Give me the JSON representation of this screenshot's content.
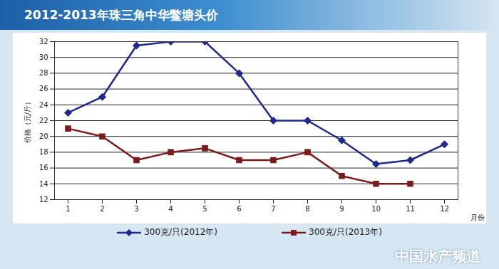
{
  "chart_data": {
    "type": "line",
    "title": "2012-2013年珠三角中华鳖塘头价",
    "x_label": "月份",
    "y_label": "价格（元/斤）",
    "watermark": "中国水产频道",
    "categories": [
      "1",
      "2",
      "3",
      "4",
      "5",
      "6",
      "7",
      "8",
      "9",
      "10",
      "11",
      "12"
    ],
    "series": [
      {
        "name": "300克/只(2012年)",
        "color": "#1f2a8c",
        "marker": "diamond",
        "values": [
          23,
          25,
          31.5,
          32,
          32,
          28,
          22,
          22,
          19.5,
          16.5,
          17,
          19
        ]
      },
      {
        "name": "300克/只(2013年)",
        "color": "#7a1c1c",
        "marker": "square",
        "values": [
          21,
          20,
          17,
          18,
          18.5,
          17,
          17,
          18,
          15,
          14,
          14,
          null
        ]
      }
    ],
    "ylim": [
      12,
      32
    ],
    "yticks": [
      12,
      14,
      16,
      18,
      20,
      22,
      24,
      26,
      28,
      30,
      32
    ],
    "grid": true,
    "legend": "bottom"
  }
}
